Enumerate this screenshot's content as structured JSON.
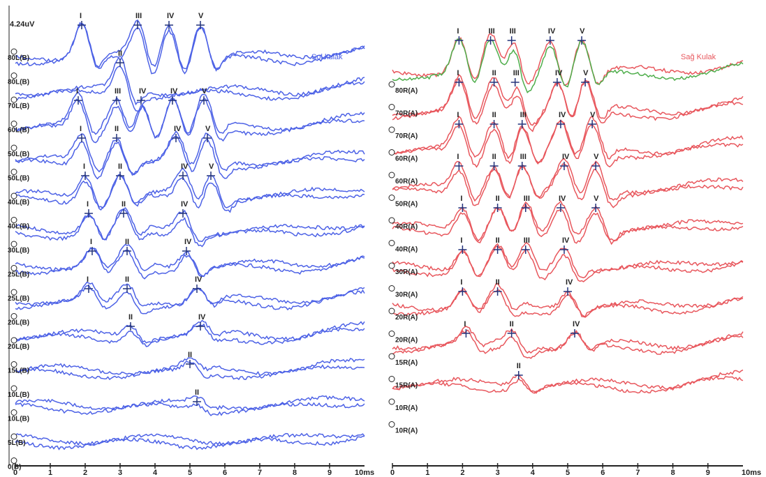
{
  "colors": {
    "left_ear": "#4d62e6",
    "right_ear": "#e8575d",
    "right_ref": "#4fae4c",
    "marker": "#23327a",
    "axis": "#222222"
  },
  "chart_data": [
    {
      "type": "line",
      "panel": "left",
      "ear_label": "Sol kulak",
      "scale_label": "4.24uV",
      "xlim": [
        0,
        10
      ],
      "x_unit_label": "10ms",
      "x_ticks": [
        "0",
        "1",
        "2",
        "3",
        "4",
        "5",
        "6",
        "7",
        "8",
        "9"
      ],
      "trace_labels": [
        "80L(B)",
        "80L(B)",
        "70L(B)",
        "60L(B)",
        "50L(B)",
        "50L(B)",
        "40L(B)",
        "40L(B)",
        "30L(B)",
        "25L(B)",
        "25L(B)",
        "20L(B)",
        "20L(B)",
        "15L(B)",
        "10L(B)",
        "10L(B)",
        "5L(B)",
        "0(B)"
      ],
      "series": [
        {
          "stim": "80L(B)",
          "peaks": [
            {
              "w": "I",
              "ms": 1.9
            },
            {
              "w": "III",
              "ms": 3.5
            },
            {
              "w": "IV",
              "ms": 4.4
            },
            {
              "w": "V",
              "ms": 5.3
            }
          ]
        },
        {
          "stim": "80L(B)",
          "peaks": [
            {
              "w": "II",
              "ms": 3.0
            }
          ]
        },
        {
          "stim": "70L(B)",
          "peaks": [
            {
              "w": "I",
              "ms": 1.8
            },
            {
              "w": "III",
              "ms": 2.9
            },
            {
              "w": "IV",
              "ms": 3.6
            },
            {
              "w": "IV",
              "ms": 4.5
            },
            {
              "w": "V",
              "ms": 5.4
            }
          ]
        },
        {
          "stim": "60L(B)",
          "peaks": [
            {
              "w": "I",
              "ms": 1.9
            },
            {
              "w": "II",
              "ms": 2.9
            },
            {
              "w": "IV",
              "ms": 4.6
            },
            {
              "w": "V",
              "ms": 5.5
            }
          ]
        },
        {
          "stim": "50L(B)",
          "peaks": [
            {
              "w": "I",
              "ms": 2.0
            },
            {
              "w": "II",
              "ms": 3.0
            },
            {
              "w": "IV",
              "ms": 4.8
            },
            {
              "w": "V",
              "ms": 5.6
            }
          ]
        },
        {
          "stim": "40L(B)",
          "peaks": [
            {
              "w": "I",
              "ms": 2.1
            },
            {
              "w": "II",
              "ms": 3.1
            },
            {
              "w": "IV",
              "ms": 4.8
            }
          ]
        },
        {
          "stim": "30L(B)",
          "peaks": [
            {
              "w": "I",
              "ms": 2.2
            },
            {
              "w": "II",
              "ms": 3.2
            },
            {
              "w": "IV",
              "ms": 4.9
            }
          ]
        },
        {
          "stim": "25L(B)",
          "peaks": [
            {
              "w": "I",
              "ms": 2.1
            },
            {
              "w": "II",
              "ms": 3.2
            },
            {
              "w": "IV",
              "ms": 5.2
            }
          ]
        },
        {
          "stim": "20L(B)",
          "peaks": [
            {
              "w": "II",
              "ms": 3.3
            },
            {
              "w": "IV",
              "ms": 5.3
            }
          ]
        },
        {
          "stim": "15L(B)",
          "peaks": [
            {
              "w": "II",
              "ms": 5.0
            }
          ]
        },
        {
          "stim": "10L(B)",
          "peaks": [
            {
              "w": "II",
              "ms": 5.2
            }
          ]
        },
        {
          "stim": "5L(B)",
          "peaks": []
        }
      ]
    },
    {
      "type": "line",
      "panel": "right",
      "ear_label": "Sağ Kulak",
      "xlim": [
        0,
        10
      ],
      "x_unit_label": "10ms",
      "x_ticks": [
        "0",
        "1",
        "2",
        "3",
        "4",
        "5",
        "6",
        "7",
        "8",
        "9"
      ],
      "trace_labels": [
        "80R(A)",
        "70R(A)",
        "70R(A)",
        "60R(A)",
        "60R(A)",
        "50R(A)",
        "40R(A)",
        "40R(A)",
        "30R(A)",
        "30R(A)",
        "20R(A)",
        "20R(A)",
        "15R(A)",
        "15R(A)",
        "10R(A)",
        "10R(A)"
      ],
      "series": [
        {
          "stim": "80R(A)",
          "peaks": [
            {
              "w": "I",
              "ms": 1.9
            },
            {
              "w": "III",
              "ms": 2.8
            },
            {
              "w": "III",
              "ms": 3.4
            },
            {
              "w": "IV",
              "ms": 4.5
            },
            {
              "w": "V",
              "ms": 5.4
            }
          ]
        },
        {
          "stim": "70R(A)",
          "peaks": [
            {
              "w": "I",
              "ms": 1.9
            },
            {
              "w": "II",
              "ms": 2.9
            },
            {
              "w": "III",
              "ms": 3.5
            },
            {
              "w": "IV",
              "ms": 4.7
            },
            {
              "w": "V",
              "ms": 5.5
            }
          ]
        },
        {
          "stim": "60R(A)",
          "peaks": [
            {
              "w": "I",
              "ms": 1.9
            },
            {
              "w": "II",
              "ms": 2.9
            },
            {
              "w": "III",
              "ms": 3.7
            },
            {
              "w": "IV",
              "ms": 4.8
            },
            {
              "w": "V",
              "ms": 5.7
            }
          ]
        },
        {
          "stim": "50R(A)",
          "peaks": [
            {
              "w": "I",
              "ms": 1.9
            },
            {
              "w": "II",
              "ms": 2.9
            },
            {
              "w": "III",
              "ms": 3.7
            },
            {
              "w": "IV",
              "ms": 4.9
            },
            {
              "w": "V",
              "ms": 5.8
            }
          ]
        },
        {
          "stim": "40R(A)",
          "peaks": [
            {
              "w": "I",
              "ms": 2.0
            },
            {
              "w": "II",
              "ms": 3.0
            },
            {
              "w": "III",
              "ms": 3.8
            },
            {
              "w": "IV",
              "ms": 4.8
            },
            {
              "w": "V",
              "ms": 5.8
            }
          ]
        },
        {
          "stim": "30R(A)",
          "peaks": [
            {
              "w": "I",
              "ms": 2.0
            },
            {
              "w": "II",
              "ms": 3.0
            },
            {
              "w": "III",
              "ms": 3.8
            },
            {
              "w": "IV",
              "ms": 4.9
            }
          ]
        },
        {
          "stim": "20R(A)",
          "peaks": [
            {
              "w": "I",
              "ms": 2.0
            },
            {
              "w": "II",
              "ms": 3.0
            },
            {
              "w": "IV",
              "ms": 5.0
            }
          ]
        },
        {
          "stim": "15R(A)",
          "peaks": [
            {
              "w": "I",
              "ms": 2.1
            },
            {
              "w": "II",
              "ms": 3.4
            },
            {
              "w": "IV",
              "ms": 5.2
            }
          ]
        },
        {
          "stim": "10R(A)",
          "peaks": [
            {
              "w": "II",
              "ms": 3.6
            }
          ]
        }
      ]
    }
  ]
}
